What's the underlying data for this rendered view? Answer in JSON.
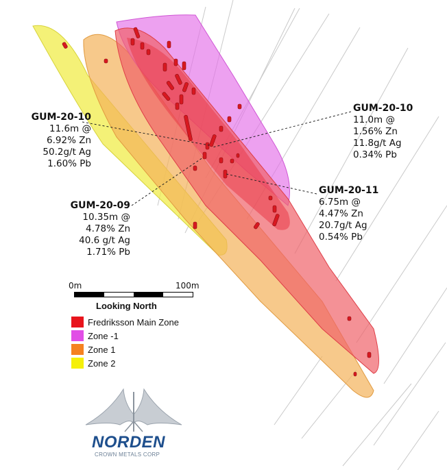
{
  "intercepts": [
    {
      "hole": "GUM-20-10",
      "lines": [
        "11.6m @",
        "6.92% Zn",
        "50.2g/t Ag",
        "1.60% Pb"
      ]
    },
    {
      "hole": "GUM-20-10",
      "lines": [
        "11.0m @",
        "1.56% Zn",
        "11.8g/t Ag",
        "0.34% Pb"
      ]
    },
    {
      "hole": "GUM-20-11",
      "lines": [
        "6.75m @",
        "4.47% Zn",
        "20.7g/t Ag",
        "0.54% Pb"
      ]
    },
    {
      "hole": "GUM-20-09",
      "lines": [
        "10.35m @",
        "4.78% Zn",
        "40.6 g/t Ag",
        "1.71% Pb"
      ]
    }
  ],
  "scale_bar": {
    "start_label": "0m",
    "end_label": "100m"
  },
  "view_label": "Looking North",
  "legend": [
    {
      "label": "Fredriksson Main Zone",
      "color": "#e8141c"
    },
    {
      "label": "Zone -1",
      "color": "#e14ee6"
    },
    {
      "label": "Zone 1",
      "color": "#f58220"
    },
    {
      "label": "Zone 2",
      "color": "#f5f00a"
    }
  ],
  "logo": {
    "name": "NORDEN",
    "subtitle": "CROWN METALS CORP",
    "icon": "crown-logo-icon"
  }
}
